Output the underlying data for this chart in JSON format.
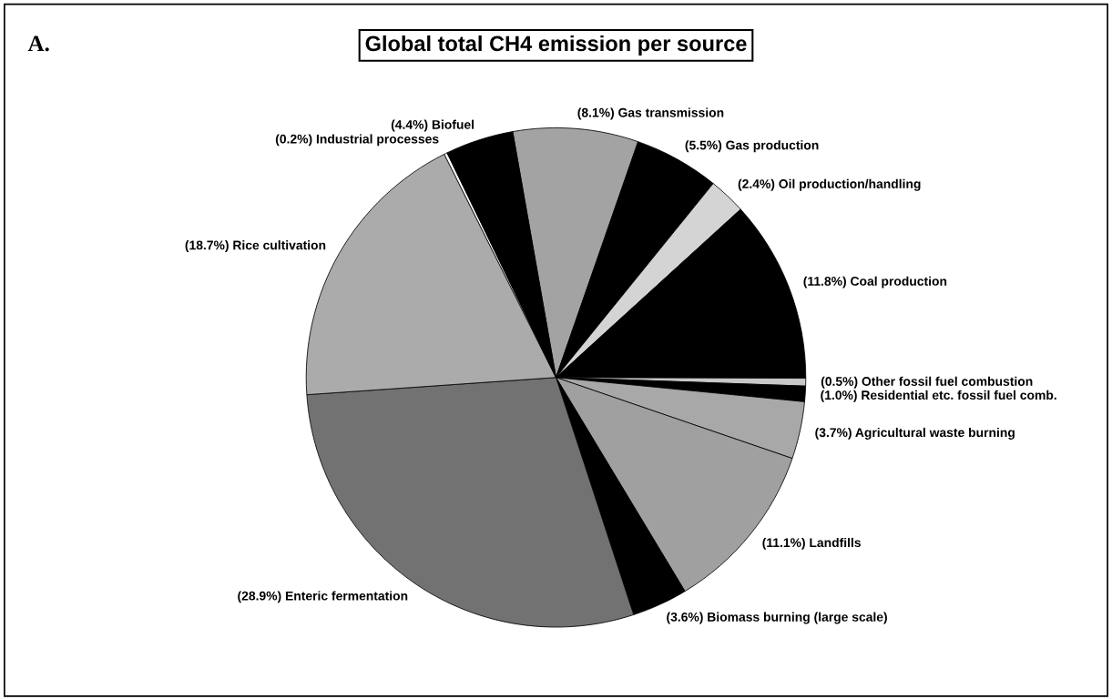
{
  "chart_data": {
    "type": "pie",
    "title": "Global total CH4 emission per source",
    "annotations": [
      "A."
    ],
    "categories": [
      "Gas transmission",
      "Gas production",
      "Oil production/handling",
      "Coal production",
      "Other fossil fuel combustion",
      "Residential etc. fossil fuel comb.",
      "Agricultural waste burning",
      "Landfills",
      "Biomass burning (large scale)",
      "Enteric fermentation",
      "Rice cultivation",
      "Industrial processes",
      "Biofuel"
    ],
    "values": [
      8.1,
      5.5,
      2.4,
      11.8,
      0.5,
      1.0,
      3.7,
      11.1,
      3.6,
      28.9,
      18.7,
      0.2,
      4.4
    ],
    "value_labels": [
      "(8.1%)",
      "(5.5%)",
      "(2.4%)",
      "(11.8%)",
      "(0.5%)",
      "(1.0%)",
      "(3.7%)",
      "(11.1%)",
      "(3.6%)",
      "(28.9%)",
      "(18.7%)",
      "(0.2%)",
      "(4.4%)"
    ],
    "colors": [
      "#a3a3a3",
      "#000000",
      "#d4d4d4",
      "#000000",
      "#c8c8c8",
      "#000000",
      "#a8a8a8",
      "#a0a0a0",
      "#000000",
      "#727272",
      "#ababab",
      "#ffffff",
      "#000000"
    ],
    "legend": false
  }
}
